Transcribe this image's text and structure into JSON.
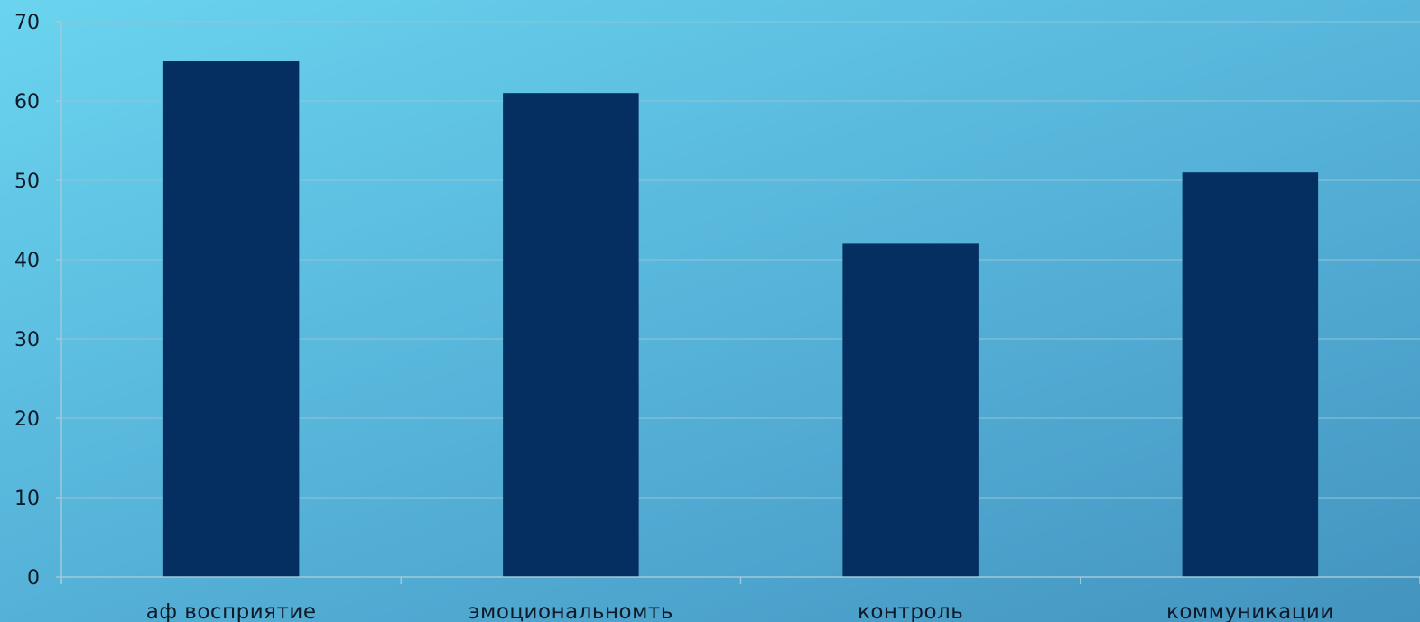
{
  "chart_data": {
    "type": "bar",
    "title": "",
    "xlabel": "",
    "ylabel": "",
    "categories": [
      "аф восприятие",
      "эмоциональномть",
      "контроль",
      "коммуникации"
    ],
    "values": [
      65,
      61,
      42,
      51
    ],
    "ylim": [
      0,
      70
    ],
    "yticks": [
      0,
      10,
      20,
      30,
      40,
      50,
      60,
      70
    ],
    "grid": true,
    "legend": "none",
    "bar_color": "#052e61",
    "background_top": "#6ad4ee",
    "background_bottom": "#4394bf"
  }
}
